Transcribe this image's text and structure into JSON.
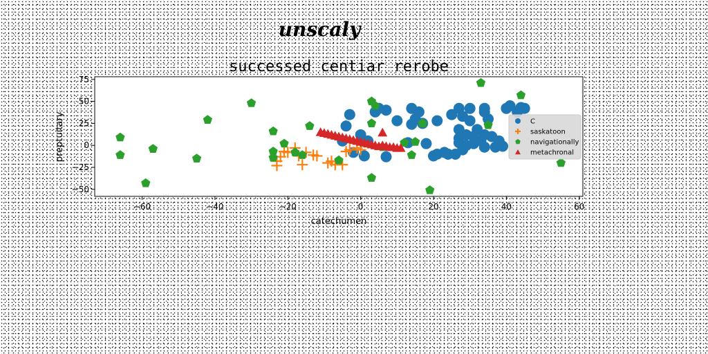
{
  "chart_data": {
    "type": "scatter",
    "suptitle": "unscaly",
    "title": "successed centiar rerobe",
    "xlabel": "catechumen",
    "ylabel": "preptuitary",
    "xlim": [
      -73,
      61
    ],
    "ylim": [
      -58,
      78
    ],
    "xticks": [
      -60,
      -40,
      -20,
      0,
      20,
      40,
      60
    ],
    "yticks": [
      -50,
      -25,
      0,
      25,
      50,
      75
    ],
    "grid": false,
    "legend_position": "right",
    "series": [
      {
        "name": "C",
        "marker": "circle",
        "color": "#1f77b4",
        "points": [
          [
            -3,
            35
          ],
          [
            -4,
            22
          ],
          [
            0,
            12
          ],
          [
            2,
            5
          ],
          [
            -2,
            -8
          ],
          [
            1,
            -12
          ],
          [
            -5,
            5
          ],
          [
            4,
            38
          ],
          [
            5,
            42
          ],
          [
            7,
            40
          ],
          [
            7,
            -13
          ],
          [
            10,
            28
          ],
          [
            13,
            3
          ],
          [
            14,
            42
          ],
          [
            14,
            24
          ],
          [
            15,
            30
          ],
          [
            16,
            38
          ],
          [
            17,
            25
          ],
          [
            18,
            2
          ],
          [
            20,
            -12
          ],
          [
            21,
            -10
          ],
          [
            21,
            28
          ],
          [
            23,
            -8
          ],
          [
            24,
            -10
          ],
          [
            25,
            35
          ],
          [
            26,
            -10
          ],
          [
            27,
            8
          ],
          [
            27,
            18
          ],
          [
            27,
            3
          ],
          [
            28,
            -5
          ],
          [
            29,
            12
          ],
          [
            29,
            0
          ],
          [
            27,
            42
          ],
          [
            28,
            33
          ],
          [
            30,
            42
          ],
          [
            30,
            28
          ],
          [
            31,
            2
          ],
          [
            31,
            10
          ],
          [
            32,
            18
          ],
          [
            33,
            5
          ],
          [
            34,
            -2
          ],
          [
            34,
            12
          ],
          [
            34,
            42
          ],
          [
            34,
            38
          ],
          [
            35,
            30
          ],
          [
            36,
            10
          ],
          [
            37,
            -2
          ],
          [
            38,
            5
          ],
          [
            39,
            -1
          ],
          [
            40,
            42
          ],
          [
            41,
            45
          ],
          [
            43,
            38
          ],
          [
            44,
            43
          ],
          [
            45,
            42
          ]
        ]
      },
      {
        "name": "saskatoon",
        "marker": "plus",
        "color": "#ff7f0e",
        "points": [
          [
            -23,
            -18
          ],
          [
            -23,
            -23
          ],
          [
            -22,
            -13
          ],
          [
            -21,
            -7
          ],
          [
            -20,
            -8
          ],
          [
            -18,
            -3
          ],
          [
            -17,
            -12
          ],
          [
            -16,
            -22
          ],
          [
            -15,
            -8
          ],
          [
            -13,
            -11
          ],
          [
            -12,
            -12
          ],
          [
            -9,
            -20
          ],
          [
            -8,
            -18
          ],
          [
            -7,
            -22
          ],
          [
            -5,
            -22
          ],
          [
            -4,
            -7
          ],
          [
            -3,
            -5
          ],
          [
            -1,
            -3
          ],
          [
            0,
            -5
          ]
        ]
      },
      {
        "name": "navigationally",
        "marker": "pentagon",
        "color": "#2ca02c",
        "points": [
          [
            -66,
            9
          ],
          [
            -66,
            -11
          ],
          [
            -59,
            -43
          ],
          [
            -57,
            -4
          ],
          [
            -45,
            -15
          ],
          [
            -42,
            29
          ],
          [
            -30,
            48
          ],
          [
            -24,
            16
          ],
          [
            -24,
            -7
          ],
          [
            -24,
            -14
          ],
          [
            -21,
            2
          ],
          [
            -18,
            -8
          ],
          [
            -16,
            -11
          ],
          [
            -14,
            22
          ],
          [
            -6,
            -17
          ],
          [
            3,
            25
          ],
          [
            3,
            50
          ],
          [
            3,
            -37
          ],
          [
            4,
            45
          ],
          [
            6,
            -2
          ],
          [
            12,
            3
          ],
          [
            14,
            -11
          ],
          [
            15,
            4
          ],
          [
            17,
            25
          ],
          [
            19,
            -51
          ],
          [
            33,
            71
          ],
          [
            35,
            23
          ],
          [
            44,
            57
          ],
          [
            55,
            -20
          ]
        ]
      },
      {
        "name": "metachronal",
        "marker": "triangle",
        "color": "#d62728",
        "points": [
          [
            -11,
            15
          ],
          [
            -10,
            14
          ],
          [
            -9,
            13
          ],
          [
            -8,
            12
          ],
          [
            -7,
            11
          ],
          [
            -6,
            10
          ],
          [
            -5,
            9
          ],
          [
            -4,
            8
          ],
          [
            -3,
            7
          ],
          [
            -2,
            6
          ],
          [
            -1,
            5
          ],
          [
            0,
            4
          ],
          [
            1,
            3
          ],
          [
            2,
            2
          ],
          [
            3,
            1
          ],
          [
            4,
            0
          ],
          [
            5,
            -1
          ],
          [
            6,
            14.5
          ],
          [
            6,
            0
          ],
          [
            7,
            -1
          ],
          [
            8,
            -2
          ],
          [
            9,
            -2
          ],
          [
            10,
            -3
          ],
          [
            11,
            -3
          ]
        ]
      }
    ]
  }
}
